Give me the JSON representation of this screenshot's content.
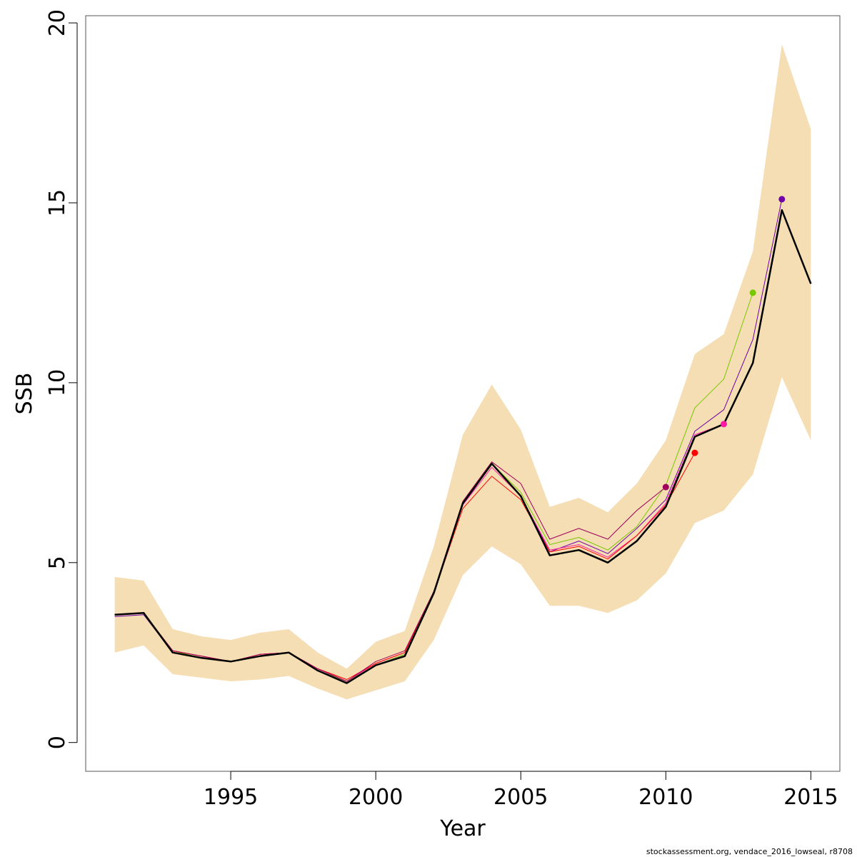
{
  "chart_data": {
    "type": "line",
    "title": "",
    "xlabel": "Year",
    "ylabel": "SSB",
    "xlim": [
      1990,
      2016
    ],
    "ylim": [
      -0.8,
      20.2
    ],
    "x_ticks": [
      1995,
      2000,
      2005,
      2010,
      2015
    ],
    "y_ticks": [
      0,
      5,
      10,
      15,
      20
    ],
    "grid": false,
    "legend": "none",
    "band": {
      "color": "#f5deb3",
      "x": [
        1991,
        1992,
        1993,
        1994,
        1995,
        1996,
        1997,
        1998,
        1999,
        2000,
        2001,
        2002,
        2003,
        2004,
        2005,
        2006,
        2007,
        2008,
        2009,
        2010,
        2011,
        2012,
        2013,
        2014,
        2015
      ],
      "lower": [
        2.5,
        2.7,
        1.9,
        1.8,
        1.7,
        1.75,
        1.85,
        1.5,
        1.2,
        1.45,
        1.7,
        2.85,
        4.65,
        5.45,
        4.95,
        3.8,
        3.8,
        3.6,
        3.95,
        4.7,
        6.1,
        6.45,
        7.45,
        10.15,
        8.4
      ],
      "upper": [
        4.6,
        4.5,
        3.15,
        2.95,
        2.85,
        3.05,
        3.15,
        2.5,
        2.05,
        2.8,
        3.1,
        5.45,
        8.55,
        9.95,
        8.7,
        6.55,
        6.8,
        6.4,
        7.2,
        8.4,
        10.8,
        11.35,
        13.65,
        19.4,
        17.05
      ]
    },
    "series": [
      {
        "color": "#000000",
        "line_width": 2.5,
        "x": [
          1991,
          1992,
          1993,
          1994,
          1995,
          1996,
          1997,
          1998,
          1999,
          2000,
          2001,
          2002,
          2003,
          2004,
          2005,
          2006,
          2007,
          2008,
          2009,
          2010,
          2011,
          2012,
          2013,
          2014,
          2015
        ],
        "values": [
          3.55,
          3.6,
          2.5,
          2.35,
          2.25,
          2.4,
          2.5,
          2.0,
          1.65,
          2.15,
          2.4,
          4.15,
          6.65,
          7.75,
          6.85,
          5.2,
          5.35,
          5.0,
          5.6,
          6.55,
          8.5,
          8.85,
          10.55,
          14.8,
          12.75
        ]
      },
      {
        "color": "#6f00a8",
        "line_width": 1,
        "x": [
          1991,
          1992,
          1993,
          1994,
          1995,
          1996,
          1997,
          1998,
          1999,
          2000,
          2001,
          2002,
          2003,
          2004,
          2005,
          2006,
          2007,
          2008,
          2009,
          2010,
          2011,
          2012,
          2013,
          2014
        ],
        "values": [
          3.5,
          3.55,
          2.5,
          2.35,
          2.25,
          2.4,
          2.5,
          2.0,
          1.7,
          2.15,
          2.45,
          4.2,
          6.6,
          7.75,
          6.85,
          5.3,
          5.6,
          5.25,
          5.95,
          6.75,
          8.65,
          9.25,
          11.2,
          15.1
        ],
        "endpoint": {
          "x": 2014,
          "y": 15.1
        }
      },
      {
        "color": "#76c800",
        "line_width": 1,
        "x": [
          1991,
          1992,
          1993,
          1994,
          1995,
          1996,
          1997,
          1998,
          1999,
          2000,
          2001,
          2002,
          2003,
          2004,
          2005,
          2006,
          2007,
          2008,
          2009,
          2010,
          2011,
          2012,
          2013
        ],
        "values": [
          3.55,
          3.6,
          2.55,
          2.35,
          2.25,
          2.4,
          2.5,
          2.0,
          1.7,
          2.15,
          2.45,
          4.2,
          6.65,
          7.75,
          6.95,
          5.5,
          5.7,
          5.35,
          6.0,
          7.15,
          9.3,
          10.1,
          12.5
        ],
        "endpoint": {
          "x": 2013,
          "y": 12.5
        }
      },
      {
        "color": "#ff1aa3",
        "line_width": 1,
        "x": [
          1991,
          1992,
          1993,
          1994,
          1995,
          1996,
          1997,
          1998,
          1999,
          2000,
          2001,
          2002,
          2003,
          2004,
          2005,
          2006,
          2007,
          2008,
          2009,
          2010,
          2011,
          2012
        ],
        "values": [
          3.55,
          3.6,
          2.55,
          2.4,
          2.25,
          2.45,
          2.5,
          2.05,
          1.7,
          2.2,
          2.5,
          4.2,
          6.6,
          7.65,
          6.85,
          5.35,
          5.5,
          5.15,
          5.75,
          6.65,
          8.55,
          8.85
        ],
        "endpoint": {
          "x": 2012,
          "y": 8.85
        }
      },
      {
        "color": "#ff0000",
        "line_width": 1,
        "x": [
          1991,
          1992,
          1993,
          1994,
          1995,
          1996,
          1997,
          1998,
          1999,
          2000,
          2001,
          2002,
          2003,
          2004,
          2005,
          2006,
          2007,
          2008,
          2009,
          2010,
          2011
        ],
        "values": [
          3.55,
          3.6,
          2.55,
          2.4,
          2.25,
          2.45,
          2.5,
          2.05,
          1.75,
          2.2,
          2.5,
          4.15,
          6.5,
          7.4,
          6.75,
          5.3,
          5.45,
          5.1,
          5.75,
          6.6,
          8.05
        ],
        "endpoint": {
          "x": 2011,
          "y": 8.05
        }
      },
      {
        "color": "#a0005a",
        "line_width": 1,
        "x": [
          1991,
          1992,
          1993,
          1994,
          1995,
          1996,
          1997,
          1998,
          1999,
          2000,
          2001,
          2002,
          2003,
          2004,
          2005,
          2006,
          2007,
          2008,
          2009,
          2010
        ],
        "values": [
          3.55,
          3.6,
          2.55,
          2.4,
          2.25,
          2.45,
          2.5,
          2.05,
          1.7,
          2.25,
          2.55,
          4.2,
          6.7,
          7.8,
          7.2,
          5.65,
          5.95,
          5.65,
          6.45,
          7.1
        ],
        "endpoint": {
          "x": 2010,
          "y": 7.1
        }
      }
    ]
  },
  "credit": "stockassessment.org, vendace_2016_lowseal, r8708"
}
